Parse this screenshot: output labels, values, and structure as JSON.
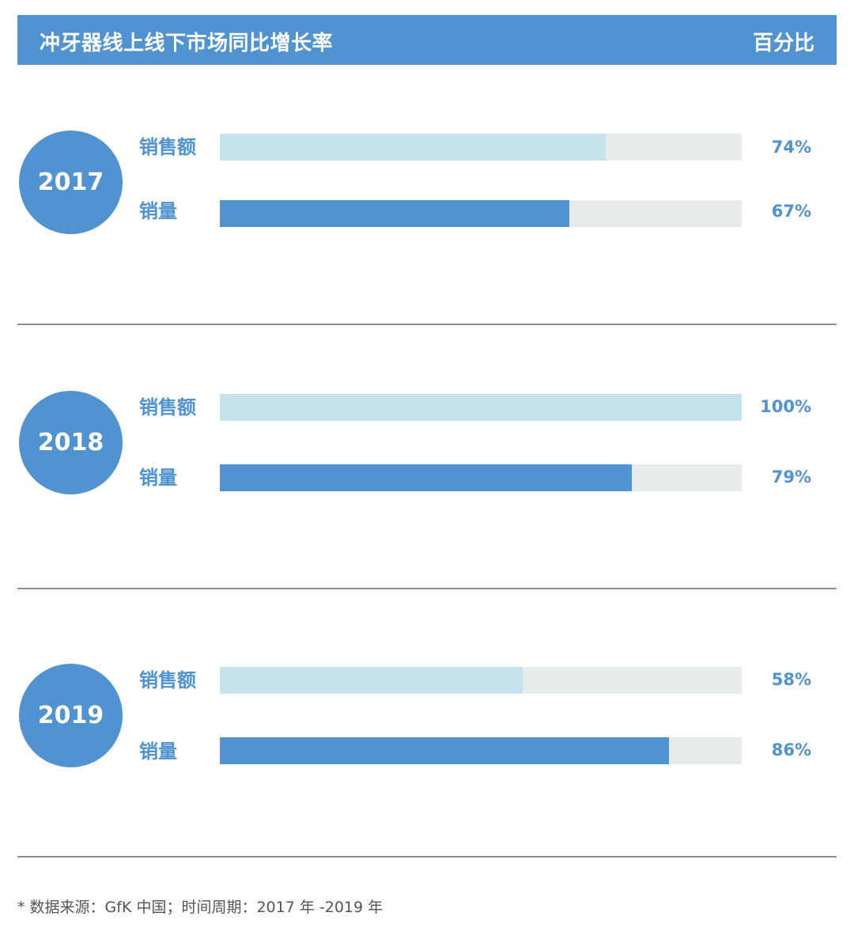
{
  "header": {
    "title": "冲牙器线上线下市场同比增长率",
    "unit": "百分比"
  },
  "chart_data": {
    "type": "bar",
    "title": "冲牙器线上线下市场同比增长率",
    "unit": "百分比",
    "categories": [
      "2017",
      "2018",
      "2019"
    ],
    "series": [
      {
        "name": "销售额",
        "values": [
          74,
          100,
          58
        ],
        "labels": [
          "74%",
          "100%",
          "58%"
        ],
        "color": "#c5e3eb"
      },
      {
        "name": "销量",
        "values": [
          67,
          79,
          86
        ],
        "labels": [
          "67%",
          "79%",
          "86%"
        ],
        "color": "#5192d0"
      }
    ],
    "ylim": [
      0,
      100
    ],
    "colors": {
      "accent": "#5192d0",
      "track": "#e8ebeb",
      "divider": "#8e8e8e"
    }
  },
  "footnote": "* 数据来源：GfK 中国；时间周期：2017 年 -2019 年"
}
